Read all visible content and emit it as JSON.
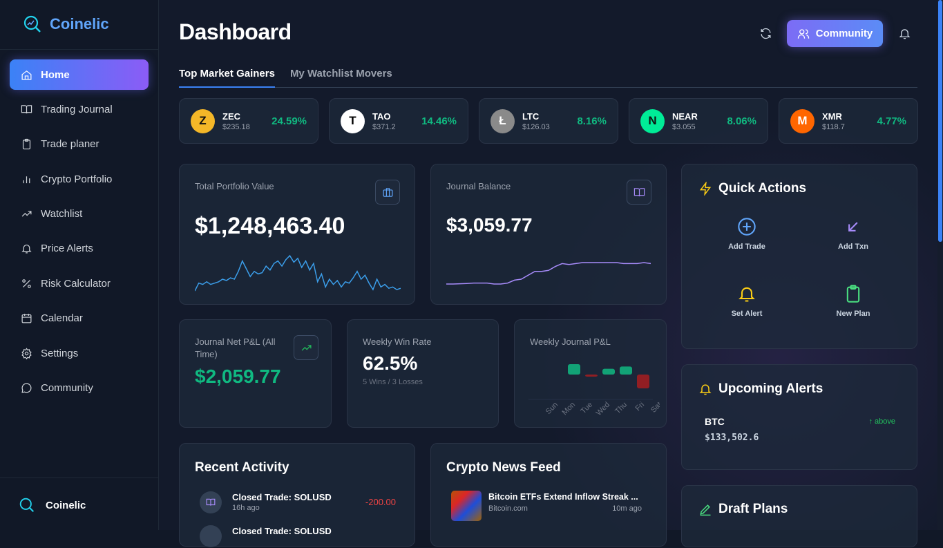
{
  "app": {
    "name": "Coinelic"
  },
  "sidebar": {
    "items": [
      {
        "label": "Home",
        "icon": "home-icon",
        "active": true
      },
      {
        "label": "Trading Journal",
        "icon": "book-open-icon"
      },
      {
        "label": "Trade planer",
        "icon": "clipboard-icon"
      },
      {
        "label": "Crypto Portfolio",
        "icon": "bar-chart-icon"
      },
      {
        "label": "Watchlist",
        "icon": "trending-up-icon"
      },
      {
        "label": "Price Alerts",
        "icon": "bell-icon"
      },
      {
        "label": "Risk Calculator",
        "icon": "percent-icon"
      },
      {
        "label": "Calendar",
        "icon": "calendar-icon"
      },
      {
        "label": "Settings",
        "icon": "gear-icon"
      },
      {
        "label": "Community",
        "icon": "message-circle-icon"
      }
    ],
    "footer": "Coinelic"
  },
  "header": {
    "title": "Dashboard",
    "community_label": "Community"
  },
  "tabs": [
    {
      "label": "Top Market Gainers",
      "active": true
    },
    {
      "label": "My Watchlist Movers"
    }
  ],
  "gainers": [
    {
      "symbol": "ZEC",
      "price": "$235.18",
      "change": "24.59%",
      "color": "#f4b728",
      "glyph": "Z"
    },
    {
      "symbol": "TAO",
      "price": "$371.2",
      "change": "14.46%",
      "color": "#ffffff",
      "glyph": "T"
    },
    {
      "symbol": "LTC",
      "price": "$126.03",
      "change": "8.16%",
      "color": "#8a8a8a",
      "glyph": "Ł"
    },
    {
      "symbol": "NEAR",
      "price": "$3.055",
      "change": "8.06%",
      "color": "#00ec97",
      "glyph": "N"
    },
    {
      "symbol": "XMR",
      "price": "$118.7",
      "change": "4.77%",
      "color": "#ff6600",
      "glyph": "M"
    }
  ],
  "portfolio": {
    "label": "Total Portfolio Value",
    "value": "$1,248,463.40",
    "sparkline": [
      3,
      9,
      8,
      10,
      8,
      9,
      10,
      12,
      11,
      13,
      12,
      18,
      26,
      20,
      14,
      18,
      16,
      17,
      22,
      19,
      24,
      26,
      22,
      27,
      30,
      25,
      28,
      21,
      26,
      19,
      24,
      10,
      16,
      6,
      12,
      8,
      11,
      6,
      10,
      9,
      13,
      18,
      12,
      15,
      9,
      4,
      12,
      6,
      8,
      5,
      6,
      4,
      5
    ]
  },
  "journal": {
    "label": "Journal Balance",
    "value": "$3,059.77",
    "sparkline": [
      0,
      0,
      0.3,
      0.6,
      1,
      1,
      1,
      0,
      0,
      1,
      4,
      5,
      9,
      13,
      13,
      14,
      18,
      21,
      20,
      21,
      22,
      22,
      22,
      22,
      22,
      22,
      21,
      21,
      21,
      22,
      21
    ]
  },
  "net_pnl": {
    "label": "Journal Net P&L (All Time)",
    "value": "$2,059.77"
  },
  "win_rate": {
    "label": "Weekly Win Rate",
    "value": "62.5%",
    "sub": "5 Wins / 3 Losses"
  },
  "chart_data": {
    "type": "bar",
    "title": "Weekly Journal P&L",
    "categories": [
      "Sun",
      "Mon",
      "Tue",
      "Wed",
      "Thu",
      "Fri",
      "Sat"
    ],
    "values": [
      0,
      45,
      -5,
      25,
      35,
      -60,
      0
    ],
    "colors": {
      "positive": "#10b981",
      "negative": "#b91c1c"
    }
  },
  "quick_actions": {
    "title": "Quick Actions",
    "items": [
      {
        "label": "Add Trade",
        "icon": "plus-circle-icon",
        "color": "#60a5fa"
      },
      {
        "label": "Add Txn",
        "icon": "arrow-down-left-icon",
        "color": "#a78bfa"
      },
      {
        "label": "Set Alert",
        "icon": "bell-icon",
        "color": "#facc15"
      },
      {
        "label": "New Plan",
        "icon": "clipboard-icon",
        "color": "#4ade80"
      }
    ]
  },
  "alerts": {
    "title": "Upcoming Alerts",
    "items": [
      {
        "symbol": "BTC",
        "price": "$133,502.6",
        "direction": "↑ above"
      }
    ]
  },
  "drafts": {
    "title": "Draft Plans"
  },
  "activity": {
    "title": "Recent Activity",
    "items": [
      {
        "title": "Closed Trade: SOLUSD",
        "time": "16h ago",
        "amount": "-200.00"
      },
      {
        "title": "Closed Trade: SOLUSD"
      }
    ]
  },
  "news": {
    "title": "Crypto News Feed",
    "items": [
      {
        "title": "Bitcoin ETFs Extend Inflow Streak ...",
        "source": "Bitcoin.com",
        "time": "10m ago"
      }
    ]
  }
}
